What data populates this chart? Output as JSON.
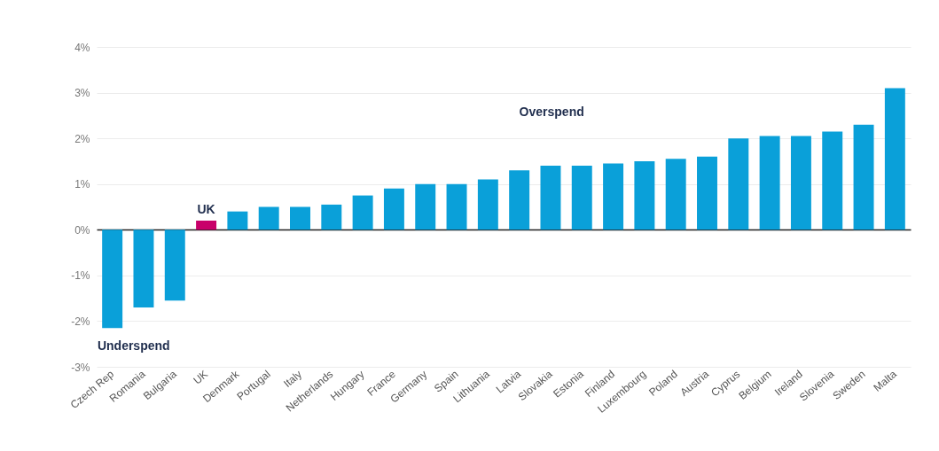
{
  "chart_data": {
    "type": "bar",
    "categories": [
      "Czech Rep",
      "Romania",
      "Bulgaria",
      "UK",
      "Denmark",
      "Portugal",
      "Italy",
      "Netherlands",
      "Hungary",
      "France",
      "Germany",
      "Spain",
      "Lithuania",
      "Latvia",
      "Slovakia",
      "Estonia",
      "Finland",
      "Luxembourg",
      "Poland",
      "Austria",
      "Cyprus",
      "Belgium",
      "Ireland",
      "Slovenia",
      "Sweden",
      "Malta"
    ],
    "values": [
      -2.15,
      -1.7,
      -1.55,
      0.2,
      0.4,
      0.5,
      0.5,
      0.55,
      0.75,
      0.9,
      1.0,
      1.0,
      1.1,
      1.3,
      1.4,
      1.4,
      1.45,
      1.5,
      1.55,
      1.6,
      2.0,
      2.05,
      2.05,
      2.15,
      2.3,
      3.1
    ],
    "colors": [
      "#0aa0d9",
      "#0aa0d9",
      "#0aa0d9",
      "#c8006a",
      "#0aa0d9",
      "#0aa0d9",
      "#0aa0d9",
      "#0aa0d9",
      "#0aa0d9",
      "#0aa0d9",
      "#0aa0d9",
      "#0aa0d9",
      "#0aa0d9",
      "#0aa0d9",
      "#0aa0d9",
      "#0aa0d9",
      "#0aa0d9",
      "#0aa0d9",
      "#0aa0d9",
      "#0aa0d9",
      "#0aa0d9",
      "#0aa0d9",
      "#0aa0d9",
      "#0aa0d9",
      "#0aa0d9",
      "#0aa0d9"
    ],
    "ylim": [
      -3,
      4
    ],
    "yticks": [
      {
        "value": -3,
        "label": "-3%"
      },
      {
        "value": -2,
        "label": "-2%"
      },
      {
        "value": -1,
        "label": "-1%"
      },
      {
        "value": 0,
        "label": "0%"
      },
      {
        "value": 1,
        "label": "1%"
      },
      {
        "value": 2,
        "label": "2%"
      },
      {
        "value": 3,
        "label": "3%"
      },
      {
        "value": 4,
        "label": "4%"
      }
    ],
    "grid": "y",
    "annotations": [
      {
        "text": "UK",
        "x": "UK",
        "y": 0.2
      },
      "Overspend",
      "Underspend"
    ]
  }
}
